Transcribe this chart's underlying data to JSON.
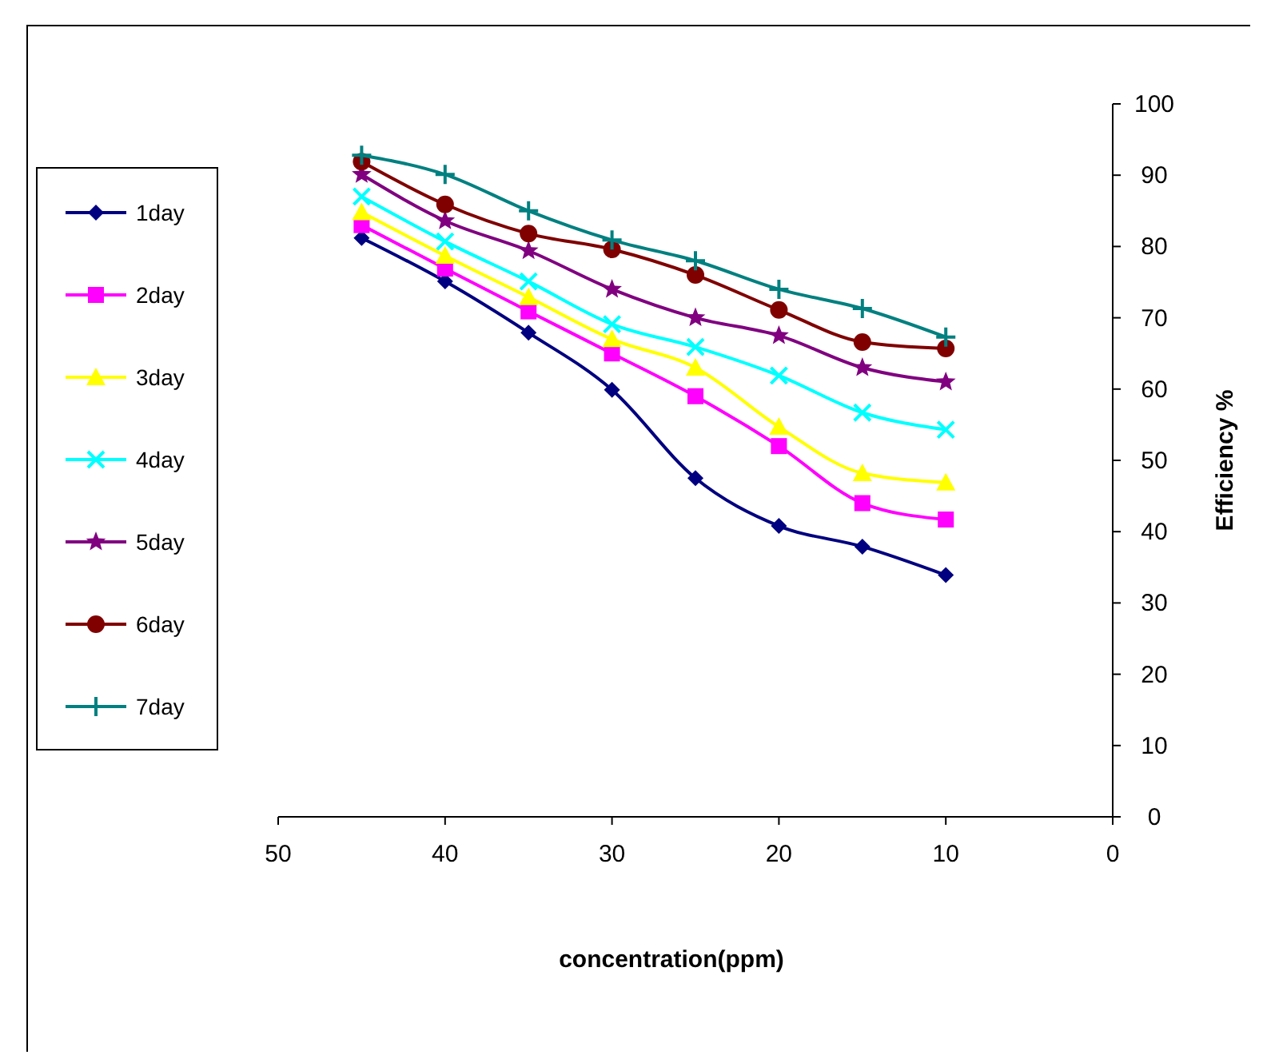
{
  "chart_data": {
    "type": "line",
    "xlabel": "concentration(ppm)",
    "ylabel": "Efficiency %",
    "x": [
      45,
      40,
      35,
      30,
      25,
      20,
      15,
      10
    ],
    "xlim": [
      50,
      0
    ],
    "xticks": [
      50,
      40,
      30,
      20,
      10,
      0
    ],
    "ylim": [
      0,
      100
    ],
    "yticks": [
      0,
      10,
      20,
      30,
      40,
      50,
      60,
      70,
      80,
      90,
      100
    ],
    "grid": false,
    "legend": "left",
    "series": [
      {
        "name": "1day",
        "color": "#000080",
        "marker": "diamond",
        "values": [
          81.2,
          75.1,
          67.9,
          59.9,
          47.5,
          40.8,
          37.9,
          33.9
        ]
      },
      {
        "name": "2day",
        "color": "#ff00ff",
        "marker": "square",
        "values": [
          83.0,
          76.9,
          70.9,
          65.0,
          59.0,
          52.0,
          44.0,
          41.7
        ]
      },
      {
        "name": "3day",
        "color": "#ffff00",
        "marker": "triangle",
        "values": [
          84.8,
          78.7,
          72.9,
          67.0,
          63.0,
          54.7,
          48.2,
          46.9
        ]
      },
      {
        "name": "4day",
        "color": "#00ffff",
        "marker": "cross",
        "values": [
          87.0,
          80.7,
          75.1,
          69.1,
          65.9,
          61.9,
          56.7,
          54.3
        ]
      },
      {
        "name": "5day",
        "color": "#800080",
        "marker": "star",
        "values": [
          90.1,
          83.6,
          79.4,
          74.0,
          70.0,
          67.5,
          63.0,
          61.0
        ]
      },
      {
        "name": "6day",
        "color": "#800000",
        "marker": "circle",
        "values": [
          91.9,
          85.9,
          81.8,
          79.6,
          76.0,
          71.1,
          66.6,
          65.7
        ]
      },
      {
        "name": "7day",
        "color": "#008080",
        "marker": "plus",
        "values": [
          92.8,
          90.1,
          85.0,
          80.9,
          78.0,
          74.0,
          71.3,
          67.3
        ]
      }
    ]
  }
}
